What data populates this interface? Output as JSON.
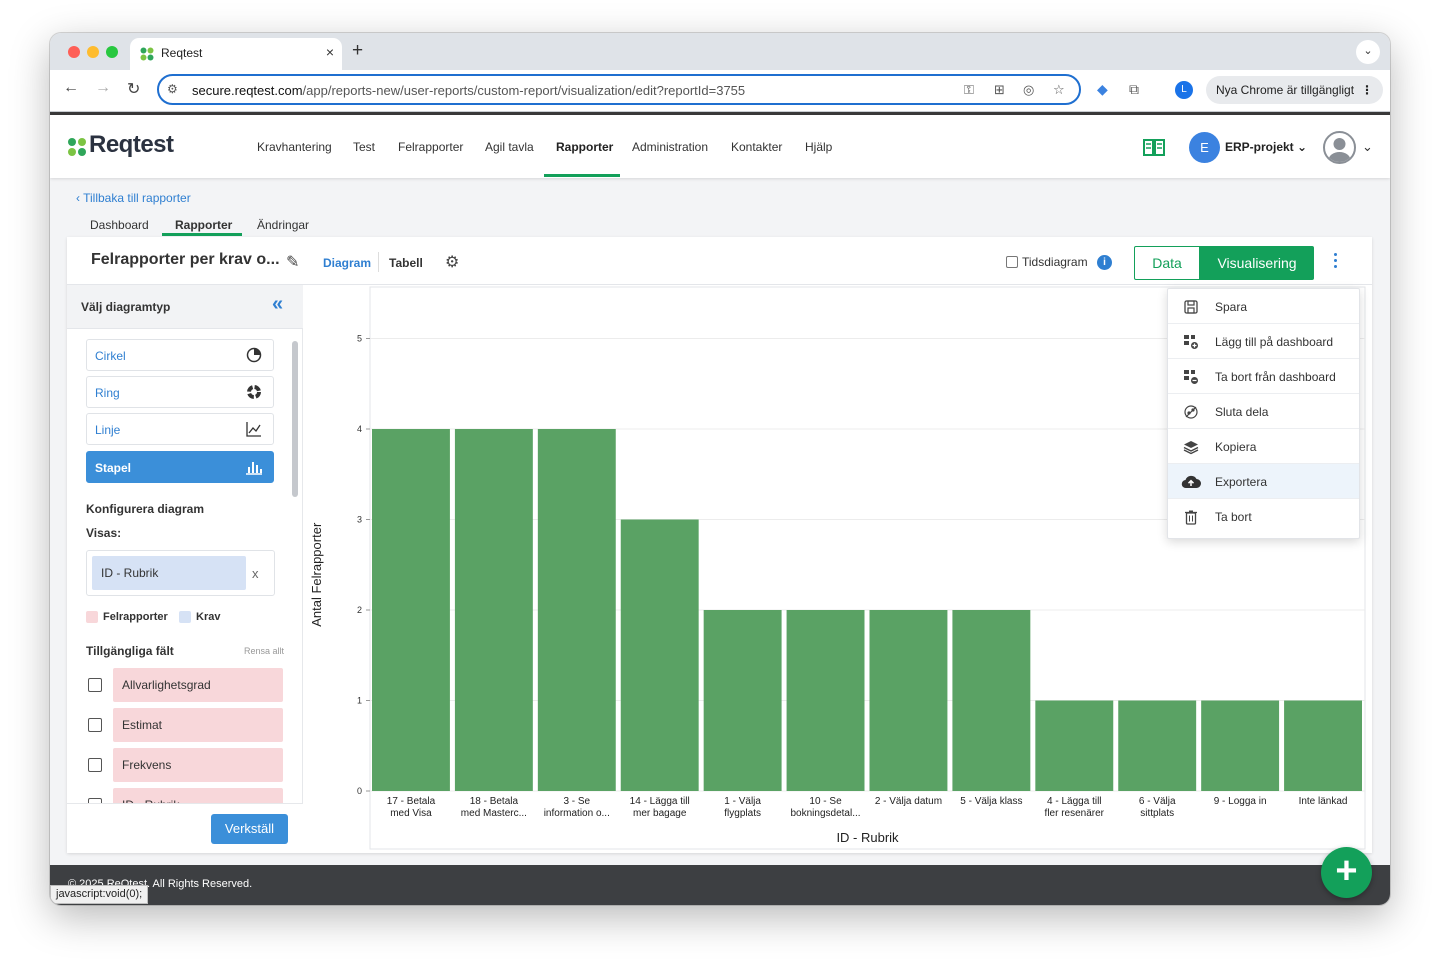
{
  "browser": {
    "tab_title": "Reqtest",
    "tab_close": "×",
    "new_tab": "+",
    "url_host": "secure.reqtest.com",
    "url_path": "/app/reports-new/user-reports/custom-report/visualization/edit?reportId=3755",
    "profile_initial": "L",
    "update_label": "Nya Chrome är tillgängligt",
    "status_text": "javascript:void(0);"
  },
  "header": {
    "logo": "Reqtest",
    "nav": [
      "Kravhantering",
      "Test",
      "Felrapporter",
      "Agil tavla",
      "Rapporter",
      "Administration",
      "Kontakter",
      "Hjälp"
    ],
    "active_nav": "Rapporter",
    "project_initial": "E",
    "project_name": "ERP-projekt"
  },
  "subnav": {
    "back": "Tillbaka till rapporter",
    "tabs": [
      "Dashboard",
      "Rapporter",
      "Ändringar"
    ],
    "active": "Rapporter"
  },
  "report": {
    "title": "Felrapporter per krav o...",
    "view_diagram": "Diagram",
    "view_tabell": "Tabell",
    "tidsdiagram": "Tidsdiagram",
    "btn_data": "Data",
    "btn_vis": "Visualisering"
  },
  "left_panel": {
    "title": "Välj diagramtyp",
    "chart_types": [
      {
        "label": "Cirkel",
        "icon": "pie-chart-icon"
      },
      {
        "label": "Ring",
        "icon": "donut-chart-icon"
      },
      {
        "label": "Linje",
        "icon": "line-chart-icon"
      },
      {
        "label": "Stapel",
        "icon": "bar-chart-icon"
      }
    ],
    "active_type": "Stapel",
    "configure": "Konfigurera diagram",
    "visas": "Visas:",
    "visas_chip": "ID - Rubrik",
    "visas_remove": "x",
    "legend": [
      {
        "label": "Felrapporter",
        "color": "#f8d7da"
      },
      {
        "label": "Krav",
        "color": "#d6e2f5"
      }
    ],
    "available": "Tillgängliga fält",
    "clear_all": "Rensa allt",
    "fields": [
      "Allvarlighetsgrad",
      "Estimat",
      "Frekvens",
      "ID - Rubrik"
    ],
    "apply": "Verkställ"
  },
  "menu": {
    "items": [
      {
        "label": "Spara",
        "icon": "save-icon"
      },
      {
        "label": "Lägg till på dashboard",
        "icon": "dashboard-add-icon"
      },
      {
        "label": "Ta bort från dashboard",
        "icon": "dashboard-remove-icon"
      },
      {
        "label": "Sluta dela",
        "icon": "unshare-icon"
      },
      {
        "label": "Kopiera",
        "icon": "copy-layers-icon"
      },
      {
        "label": "Exportera",
        "icon": "cloud-upload-icon"
      },
      {
        "label": "Ta bort",
        "icon": "trash-icon"
      }
    ],
    "highlighted": "Exportera"
  },
  "chart_data": {
    "type": "bar",
    "categories": [
      [
        "17 - Betala",
        "med Visa"
      ],
      [
        "18 - Betala",
        "med Masterc..."
      ],
      [
        "3 - Se",
        "information o..."
      ],
      [
        "14 - Lägga till",
        "mer bagage"
      ],
      [
        "1 - Välja",
        "flygplats"
      ],
      [
        "10 - Se",
        "bokningsdetal..."
      ],
      [
        "2 - Välja datum"
      ],
      [
        "5 - Välja klass"
      ],
      [
        "4 - Lägga till",
        "fler resenärer"
      ],
      [
        "6 - Välja",
        "sittplats"
      ],
      [
        "9 - Logga in"
      ],
      [
        "Inte länkad"
      ]
    ],
    "values": [
      4,
      4,
      4,
      3,
      2,
      2,
      2,
      2,
      1,
      1,
      1,
      1
    ],
    "xlabel": "ID - Rubrik",
    "ylabel": "Antal Felrapporter",
    "ylim": [
      0,
      5
    ],
    "yticks": [
      "0",
      "1",
      "2",
      "3",
      "4",
      "5"
    ],
    "bar_color": "#5aa264",
    "grid": true
  },
  "footer": {
    "copyright": "© 2025 ReQtest. All Rights Reserved.",
    "fab": "+"
  }
}
